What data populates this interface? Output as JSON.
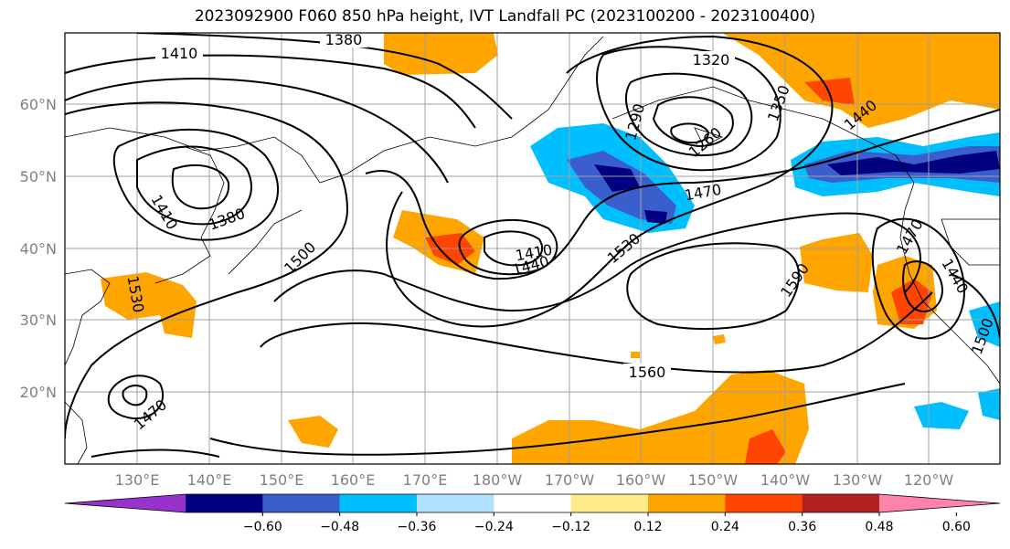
{
  "title": "2023092900 F060 850 hPa height, IVT Landfall PC (2023100200 - 2023100400)",
  "lat_labels": [
    "60°N",
    "50°N",
    "40°N",
    "30°N",
    "20°N"
  ],
  "lon_labels": [
    "130°E",
    "140°E",
    "150°E",
    "160°E",
    "170°E",
    "180°W",
    "170°W",
    "160°W",
    "150°W",
    "140°W",
    "130°W",
    "120°W"
  ],
  "contour_labels": [
    "1380",
    "1410",
    "1320",
    "1290",
    "1260",
    "1350",
    "1440",
    "1410",
    "1380",
    "1470",
    "1410",
    "1440",
    "1500",
    "1530",
    "1590",
    "1470",
    "1440",
    "1500",
    "1560",
    "1470",
    "1530"
  ],
  "colorbar": {
    "ticks": [
      "−0.60",
      "−0.48",
      "−0.36",
      "−0.24",
      "−0.12",
      "0.12",
      "0.24",
      "0.36",
      "0.48",
      "0.60"
    ],
    "colors": [
      "#9932cc",
      "#000080",
      "#3a5fcd",
      "#00bfff",
      "#b0e2ff",
      "#ffffff",
      "#ffec8b",
      "#ffa500",
      "#ff4500",
      "#b22222",
      "#ff82ab"
    ]
  }
}
